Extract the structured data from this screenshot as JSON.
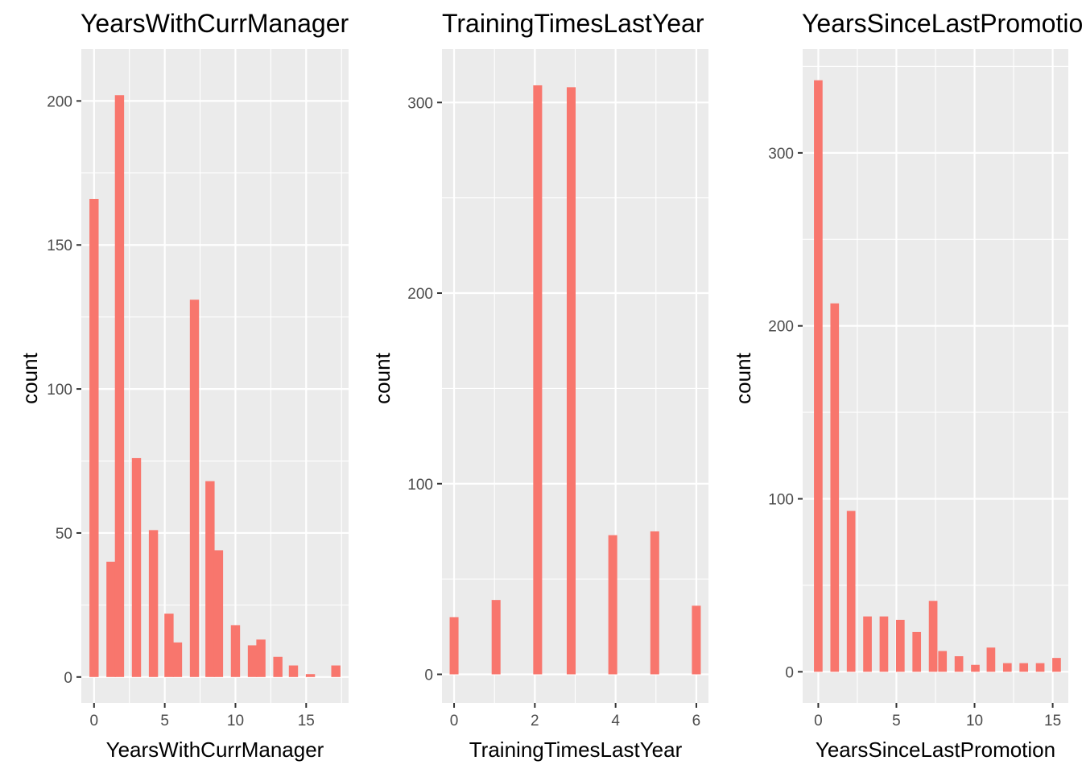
{
  "chart_data": [
    {
      "type": "bar",
      "title": "YearsWithCurrManager",
      "xlabel": "YearsWithCurrManager",
      "ylabel": "count",
      "bar_color": "#F8766D",
      "panel_bg": "#EBEBEB",
      "grid": true,
      "xlim": [
        -0.9,
        18.0
      ],
      "ylim": [
        -9,
        218
      ],
      "x_major_ticks": [
        0,
        5,
        10,
        15
      ],
      "x_minor_ticks": [
        2.5,
        7.5,
        12.5,
        17.5
      ],
      "y_major_ticks": [
        0,
        50,
        100,
        150,
        200
      ],
      "y_minor_ticks": [
        25,
        75,
        125,
        175
      ],
      "bar_width": 0.65,
      "x": [
        0,
        1.2,
        1.8,
        3,
        4.2,
        5.3,
        5.9,
        7.1,
        8.2,
        8.8,
        10,
        11.2,
        11.8,
        13,
        14.1,
        15.3,
        17.1
      ],
      "values": [
        166,
        40,
        202,
        76,
        51,
        22,
        12,
        131,
        68,
        44,
        18,
        11,
        13,
        7,
        4,
        1,
        4
      ]
    },
    {
      "type": "bar",
      "title": "TrainingTimesLastYear",
      "xlabel": "TrainingTimesLastYear",
      "ylabel": "count",
      "bar_color": "#F8766D",
      "panel_bg": "#EBEBEB",
      "grid": true,
      "xlim": [
        -0.3,
        6.3
      ],
      "ylim": [
        -15,
        328
      ],
      "x_major_ticks": [
        0,
        2,
        4,
        6
      ],
      "x_minor_ticks": [
        1,
        3,
        5
      ],
      "y_major_ticks": [
        0,
        100,
        200,
        300
      ],
      "y_minor_ticks": [
        50,
        150,
        250
      ],
      "bar_width": 0.22,
      "x": [
        0,
        1.04,
        2.07,
        2.9,
        3.93,
        4.97,
        6.0
      ],
      "values": [
        30,
        39,
        309,
        308,
        73,
        75,
        36
      ]
    },
    {
      "type": "bar",
      "title": "YearsSinceLastPromotion",
      "xlabel": "YearsSinceLastPromotion",
      "ylabel": "count",
      "bar_color": "#F8766D",
      "panel_bg": "#EBEBEB",
      "grid": true,
      "xlim": [
        -1.0,
        16.0
      ],
      "ylim": [
        -18,
        360
      ],
      "x_major_ticks": [
        0,
        5,
        10,
        15
      ],
      "x_minor_ticks": [
        2.5,
        7.5,
        12.5
      ],
      "y_major_ticks": [
        0,
        100,
        200,
        300
      ],
      "y_minor_ticks": [
        50,
        150,
        250,
        350
      ],
      "bar_width": 0.55,
      "x": [
        0,
        1.05,
        2.1,
        3.15,
        4.2,
        5.25,
        6.3,
        7.35,
        7.95,
        9,
        10.05,
        11.05,
        12.1,
        13.15,
        14.2,
        15.25
      ],
      "values": [
        342,
        213,
        93,
        32,
        32,
        30,
        23,
        41,
        12,
        9,
        4,
        14,
        5,
        5,
        5,
        8
      ]
    }
  ]
}
